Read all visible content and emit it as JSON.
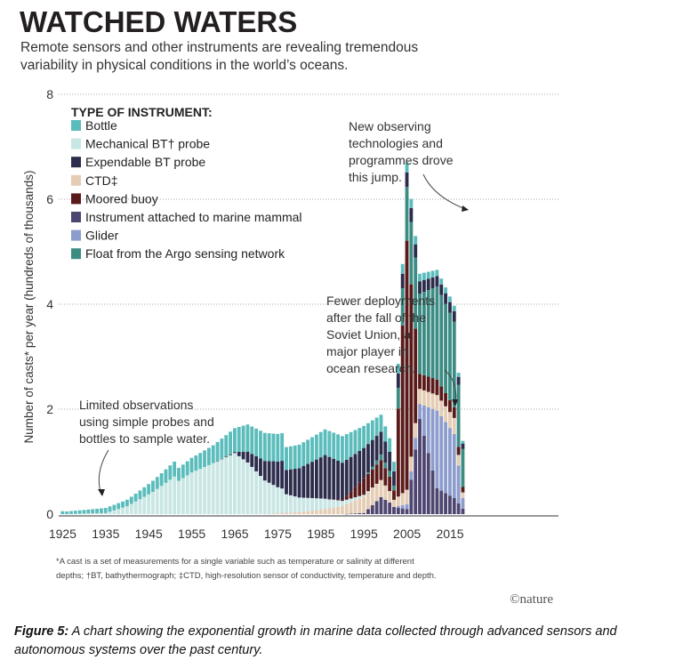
{
  "caption": {
    "label": "Figure 5:",
    "text": "A chart showing the exponential growth in marine data collected through advanced sensors and autonomous systems over the past century."
  },
  "chart_data": {
    "type": "bar",
    "stacked": true,
    "title": "WATCHED WATERS",
    "subtitle_lines": [
      "Remote sensors and other instruments are revealing tremendous",
      "variability in physical conditions in the world’s oceans."
    ],
    "xlabel": "",
    "ylabel": "Number of casts* per year (hundreds of thousands)",
    "ylim": [
      0,
      8
    ],
    "yticks": [
      0,
      2,
      4,
      6,
      8
    ],
    "xticks": [
      1925,
      1935,
      1945,
      1955,
      1965,
      1975,
      1985,
      1995,
      2005,
      2015
    ],
    "legend_title": "TYPE OF INSTRUMENT:",
    "series_names": [
      "Bottle",
      "Mechanical BT† probe",
      "Expendable BT probe",
      "CTD‡",
      "Moored buoy",
      "Instrument attached to marine mammal",
      "Glider",
      "Float from the Argo sensing network"
    ],
    "series_colors": [
      "#5bbcbc",
      "#c8e6e4",
      "#2c2c4c",
      "#e4cdb4",
      "#5a1a1a",
      "#4e4670",
      "#8c9ccc",
      "#3c8c84"
    ],
    "key_points": [
      {
        "year": 1925,
        "bottle": 0.05,
        "mbt": 0,
        "xbt": 0,
        "ctd": 0,
        "moored": 0,
        "mammal": 0,
        "glider": 0,
        "argo": 0
      },
      {
        "year": 1935,
        "bottle": 0.1,
        "mbt": 0.02,
        "xbt": 0,
        "ctd": 0,
        "moored": 0,
        "mammal": 0,
        "glider": 0,
        "argo": 0
      },
      {
        "year": 1940,
        "bottle": 0.12,
        "mbt": 0.15,
        "xbt": 0,
        "ctd": 0,
        "moored": 0,
        "mammal": 0,
        "glider": 0,
        "argo": 0
      },
      {
        "year": 1946,
        "bottle": 0.2,
        "mbt": 0.4,
        "xbt": 0,
        "ctd": 0,
        "moored": 0,
        "mammal": 0,
        "glider": 0,
        "argo": 0
      },
      {
        "year": 1950,
        "bottle": 0.25,
        "mbt": 0.6,
        "xbt": 0,
        "ctd": 0,
        "moored": 0,
        "mammal": 0,
        "glider": 0,
        "argo": 0
      },
      {
        "year": 1955,
        "bottle": 0.3,
        "mbt": 0.85,
        "xbt": 0,
        "ctd": 0,
        "moored": 0,
        "mammal": 0,
        "glider": 0,
        "argo": 0
      },
      {
        "year": 1960,
        "bottle": 0.35,
        "mbt": 1.0,
        "xbt": 0,
        "ctd": 0,
        "moored": 0,
        "mammal": 0,
        "glider": 0,
        "argo": 0
      },
      {
        "year": 1965,
        "bottle": 0.45,
        "mbt": 1.15,
        "xbt": 0.02,
        "ctd": 0,
        "moored": 0,
        "mammal": 0,
        "glider": 0,
        "argo": 0
      },
      {
        "year": 1968,
        "bottle": 0.5,
        "mbt": 0.95,
        "xbt": 0.2,
        "ctd": 0,
        "moored": 0,
        "mammal": 0,
        "glider": 0,
        "argo": 0
      },
      {
        "year": 1972,
        "bottle": 0.5,
        "mbt": 0.6,
        "xbt": 0.35,
        "ctd": 0,
        "moored": 0,
        "mammal": 0,
        "glider": 0,
        "argo": 0
      },
      {
        "year": 1975,
        "bottle": 0.48,
        "mbt": 0.45,
        "xbt": 0.45,
        "ctd": 0.02,
        "moored": 0,
        "mammal": 0,
        "glider": 0,
        "argo": 0
      },
      {
        "year": 1980,
        "bottle": 0.48,
        "mbt": 0.3,
        "xbt": 0.6,
        "ctd": 0.04,
        "moored": 0,
        "mammal": 0,
        "glider": 0,
        "argo": 0
      },
      {
        "year": 1986,
        "bottle": 0.5,
        "mbt": 0.2,
        "xbt": 0.85,
        "ctd": 0.1,
        "moored": 0,
        "mammal": 0,
        "glider": 0,
        "argo": 0
      },
      {
        "year": 1990,
        "bottle": 0.5,
        "mbt": 0.1,
        "xbt": 0.7,
        "ctd": 0.15,
        "moored": 0.02,
        "mammal": 0,
        "glider": 0,
        "argo": 0
      },
      {
        "year": 1995,
        "bottle": 0.4,
        "mbt": 0.03,
        "xbt": 0.55,
        "ctd": 0.3,
        "moored": 0.3,
        "mammal": 0.02,
        "glider": 0,
        "argo": 0
      },
      {
        "year": 1999,
        "bottle": 0.3,
        "mbt": 0,
        "xbt": 0.4,
        "ctd": 0.3,
        "moored": 0.35,
        "mammal": 0.3,
        "glider": 0,
        "argo": 0.1
      },
      {
        "year": 2002,
        "bottle": 0.2,
        "mbt": 0,
        "xbt": 0.3,
        "ctd": 0.15,
        "moored": 0.2,
        "mammal": 0.15,
        "glider": 0,
        "argo": 0.1
      },
      {
        "year": 2005,
        "bottle": 0.2,
        "mbt": 0,
        "xbt": 0.3,
        "ctd": 0.3,
        "moored": 5.1,
        "mammal": 0.1,
        "glider": 0.1,
        "argo": 1.1
      },
      {
        "year": 2008,
        "bottle": 0.15,
        "mbt": 0,
        "xbt": 0.25,
        "ctd": 0.3,
        "moored": 0.3,
        "mammal": 1.9,
        "glider": 0.3,
        "argo": 1.6
      },
      {
        "year": 2012,
        "bottle": 0.12,
        "mbt": 0,
        "xbt": 0.2,
        "ctd": 0.3,
        "moored": 0.3,
        "mammal": 0.5,
        "glider": 1.5,
        "argo": 1.8
      },
      {
        "year": 2016,
        "bottle": 0.1,
        "mbt": 0,
        "xbt": 0.2,
        "ctd": 0.3,
        "moored": 0.2,
        "mammal": 0.3,
        "glider": 1.2,
        "argo": 1.6
      },
      {
        "year": 2018,
        "bottle": 0.05,
        "mbt": 0,
        "xbt": 0.1,
        "ctd": 0.1,
        "moored": 0.1,
        "mammal": 0.1,
        "glider": 0.2,
        "argo": 0.7
      }
    ],
    "annotations": [
      [
        "New observing",
        "technologies and",
        "programmes drove",
        "this jump."
      ],
      [
        "Fewer deployments",
        "after the fall of the",
        "Soviet Union, a",
        "major player in",
        "ocean research."
      ],
      [
        "Limited observations",
        "using simple probes and",
        "bottles to sample water."
      ]
    ],
    "footnote_lines": [
      "*A cast is a set of measurements for a single variable such as temperature or salinity at different",
      "depths; †BT, bathythermograph; ‡CTD, high-resolution sensor of conductivity, temperature and depth."
    ],
    "brand": "©nature"
  }
}
